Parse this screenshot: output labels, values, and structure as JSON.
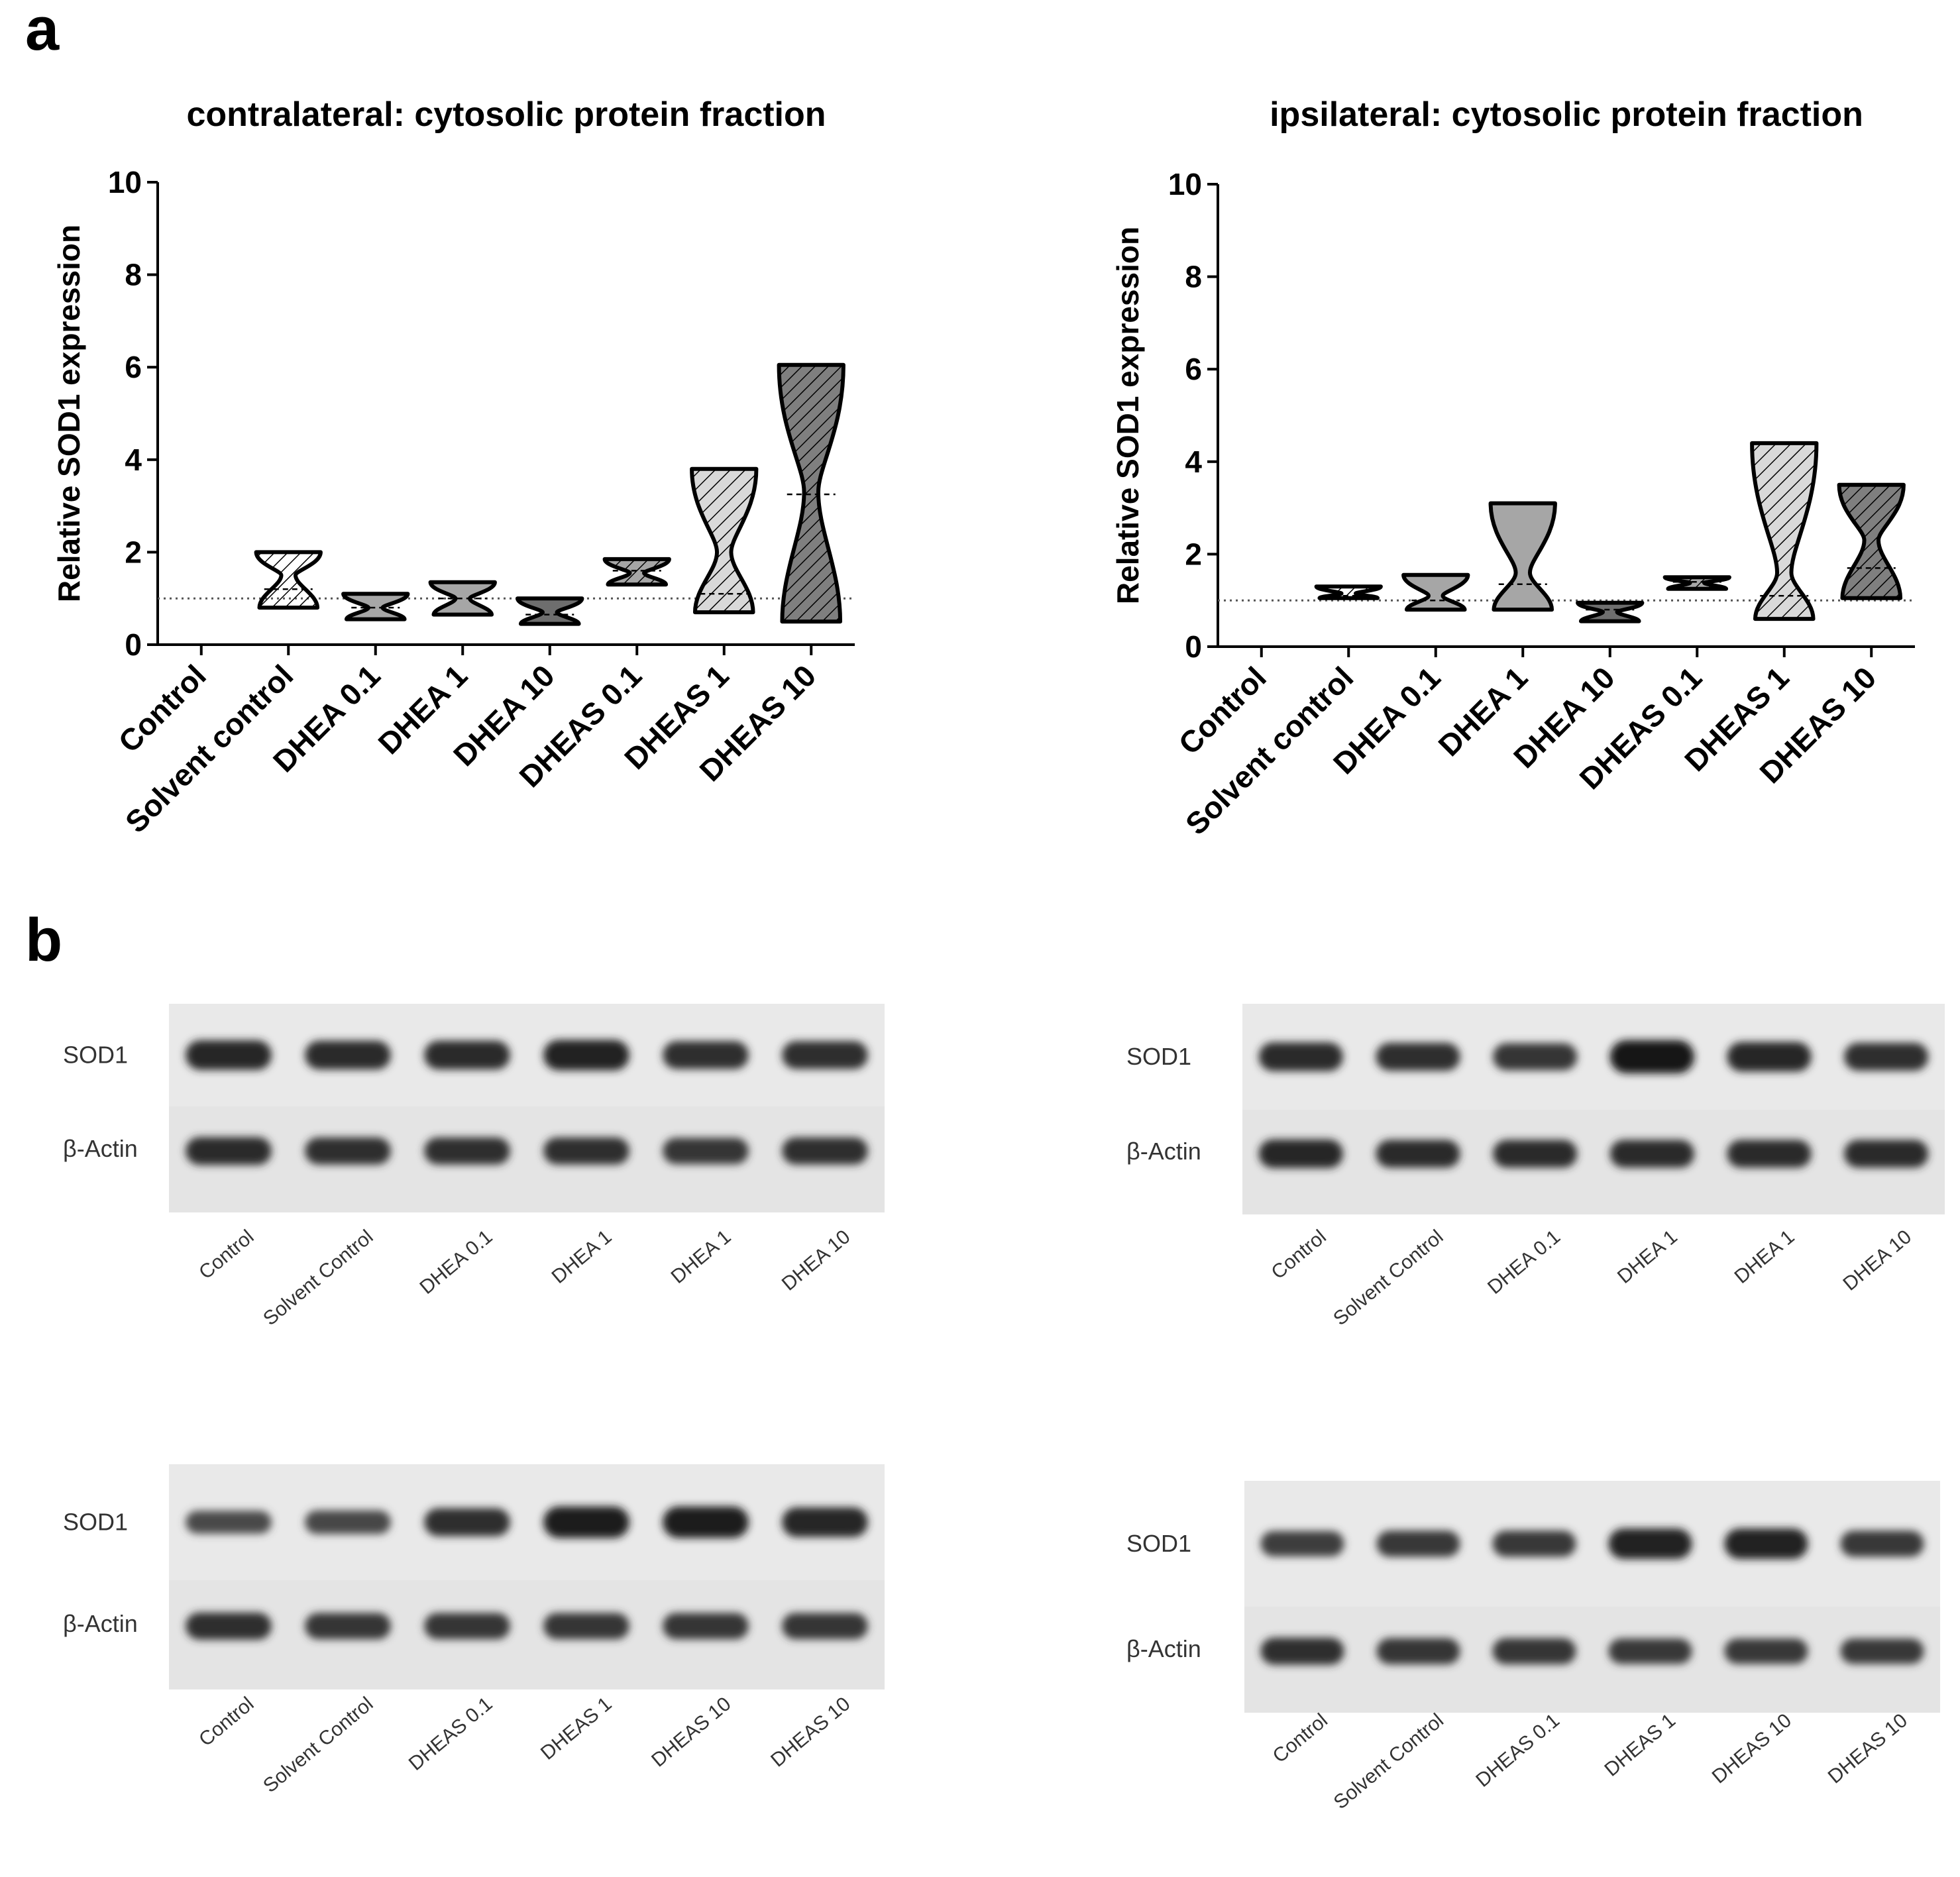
{
  "panels": {
    "a": "a",
    "b": "b"
  },
  "chart_data": [
    {
      "type": "violin",
      "title": "contralateral: cytosolic protein fraction",
      "ylabel": "Relative SOD1 expression",
      "xlabel": "",
      "ylim": [
        0,
        10
      ],
      "yticks": [
        "0",
        "2",
        "4",
        "6",
        "8",
        "10"
      ],
      "reference_line": 1,
      "grid": false,
      "categories": [
        "Control",
        "Solvent control",
        "DHEA 0.1",
        "DHEA 1",
        "DHEA 10",
        "DHEAS 0.1",
        "DHEAS 1",
        "DHEAS 10"
      ],
      "violins": [
        null,
        {
          "min": 0.8,
          "max": 2.0,
          "median": 1.2,
          "neck": 1.5,
          "fill": "white-hatched"
        },
        {
          "min": 0.55,
          "max": 1.1,
          "median": 0.8,
          "neck": 0.8,
          "fill": "gray"
        },
        {
          "min": 0.65,
          "max": 1.35,
          "median": 1.0,
          "neck": 1.0,
          "fill": "gray"
        },
        {
          "min": 0.45,
          "max": 1.0,
          "median": 0.65,
          "neck": 0.7,
          "fill": "dark-gray"
        },
        {
          "min": 1.3,
          "max": 1.85,
          "median": 1.6,
          "neck": 1.55,
          "fill": "gray-hatched"
        },
        {
          "min": 0.7,
          "max": 3.8,
          "median": 1.1,
          "neck": 2.0,
          "fill": "light-gray-hatched"
        },
        {
          "min": 0.5,
          "max": 6.05,
          "median": 3.25,
          "neck": 3.3,
          "fill": "dark-gray-hatched"
        }
      ]
    },
    {
      "type": "violin",
      "title": "ipsilateral: cytosolic protein fraction",
      "ylabel": "Relative SOD1 expression",
      "xlabel": "",
      "ylim": [
        0,
        10
      ],
      "yticks": [
        "0",
        "2",
        "4",
        "6",
        "8",
        "10"
      ],
      "reference_line": 1,
      "grid": false,
      "categories": [
        "Control",
        "Solvent control",
        "DHEA 0.1",
        "DHEA 1",
        "DHEA 10",
        "DHEAS 0.1",
        "DHEAS 1",
        "DHEAS 10"
      ],
      "violins": [
        null,
        {
          "min": 1.05,
          "max": 1.3,
          "median": 1.1,
          "neck": 1.15,
          "fill": "white-hatched"
        },
        {
          "min": 0.8,
          "max": 1.55,
          "median": 1.0,
          "neck": 1.1,
          "fill": "gray"
        },
        {
          "min": 0.8,
          "max": 3.1,
          "median": 1.35,
          "neck": 1.6,
          "fill": "gray"
        },
        {
          "min": 0.55,
          "max": 0.95,
          "median": 0.8,
          "neck": 0.75,
          "fill": "dark-gray"
        },
        {
          "min": 1.25,
          "max": 1.5,
          "median": 1.4,
          "neck": 1.38,
          "fill": "gray-hatched"
        },
        {
          "min": 0.6,
          "max": 4.4,
          "median": 1.1,
          "neck": 1.6,
          "fill": "light-gray-hatched"
        },
        {
          "min": 1.05,
          "max": 3.5,
          "median": 1.7,
          "neck": 2.3,
          "fill": "dark-gray-hatched"
        }
      ]
    }
  ],
  "blots": [
    {
      "row_labels": [
        "SOD1",
        "β-Actin"
      ],
      "lanes": [
        "Control",
        "Solvent Control",
        "DHEA 0.1",
        "DHEA 1",
        "DHEA 1",
        "DHEA 10"
      ],
      "sod1_intensity": [
        0.8,
        0.75,
        0.75,
        0.85,
        0.7,
        0.7
      ],
      "actin_intensity": [
        0.75,
        0.7,
        0.7,
        0.7,
        0.65,
        0.7
      ]
    },
    {
      "row_labels": [
        "SOD1",
        "β-Actin"
      ],
      "lanes": [
        "Control",
        "Solvent Control",
        "DHEA 0.1",
        "DHEA 1",
        "DHEA 1",
        "DHEA 10"
      ],
      "sod1_intensity": [
        0.75,
        0.7,
        0.65,
        1.0,
        0.8,
        0.7
      ],
      "actin_intensity": [
        0.8,
        0.75,
        0.75,
        0.75,
        0.75,
        0.75
      ]
    },
    {
      "row_labels": [
        "SOD1",
        "β-Actin"
      ],
      "lanes": [
        "Control",
        "Solvent Control",
        "DHEAS 0.1",
        "DHEAS 1",
        "DHEAS 10",
        "DHEAS 10"
      ],
      "sod1_intensity": [
        0.4,
        0.45,
        0.7,
        0.9,
        0.9,
        0.8
      ],
      "actin_intensity": [
        0.7,
        0.65,
        0.65,
        0.65,
        0.65,
        0.65
      ]
    },
    {
      "row_labels": [
        "SOD1",
        "β-Actin"
      ],
      "lanes": [
        "Control",
        "Solvent Control",
        "DHEAS 0.1",
        "DHEAS 1",
        "DHEAS 10",
        "DHEAS 10"
      ],
      "sod1_intensity": [
        0.55,
        0.6,
        0.6,
        0.85,
        0.85,
        0.6
      ],
      "actin_intensity": [
        0.7,
        0.65,
        0.65,
        0.6,
        0.6,
        0.6
      ]
    }
  ]
}
